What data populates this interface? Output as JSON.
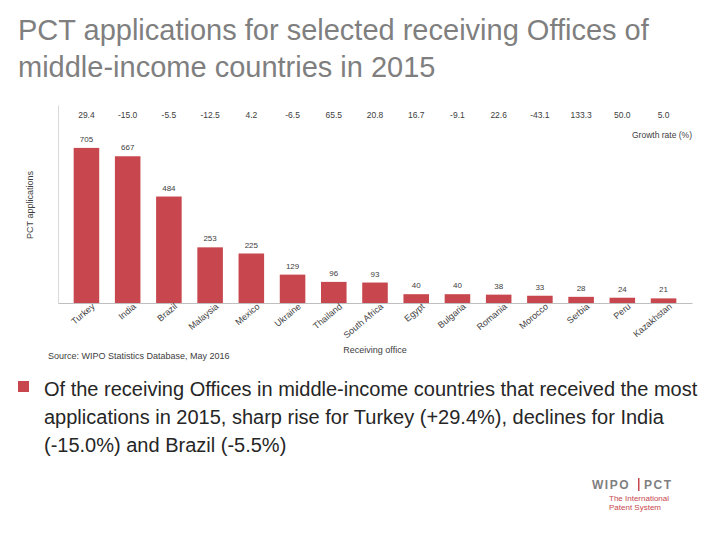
{
  "chart_data": {
    "type": "bar",
    "title": "PCT applications for selected receiving Offices of middle-income countries in 2015",
    "x_label": "Receiving office",
    "y_label": "PCT applications",
    "source": "Source: WIPO Statistics Database, May 2016",
    "categories": [
      "Turkey",
      "India",
      "Brazil",
      "Malaysia",
      "Mexico",
      "Ukraine",
      "Thailand",
      "South Africa",
      "Egypt",
      "Bulgaria",
      "Romania",
      "Morocco",
      "Serbia",
      "Peru",
      "Kazakhstan"
    ],
    "values": [
      705,
      667,
      484,
      253,
      225,
      129,
      96,
      93,
      40,
      40,
      38,
      33,
      28,
      24,
      21
    ],
    "color": "#c8474e",
    "ylim": [
      0,
      900
    ],
    "yticks": [],
    "grid": false,
    "data_labels": true,
    "tick_labels": "x",
    "growth_rate": {
      "label": "Growth rate (%)",
      "values": [
        29.4,
        -15,
        -5.5,
        -12.5,
        4.2,
        -6.5,
        65.5,
        20.8,
        16.7,
        -9.1,
        22.6,
        -43.1,
        133.3,
        50,
        5
      ],
      "value_labels": [
        "29.4",
        "-15.0",
        "-5.5",
        "-12.5",
        "4.2",
        "-6.5",
        "65.5",
        "20.8",
        "16.7",
        "-9.1",
        "22.6",
        "-43.1",
        "133.3",
        "50.0",
        "5.0"
      ]
    }
  },
  "bullets": [
    "Of the receiving Offices in middle-income countries that received the most applications in 2015, sharp rise for Turkey (+29.4%), declines for India (-15.0%) and Brazil (-5.5%)"
  ],
  "logo": {
    "organization": "WIPO",
    "system": "PCT",
    "tagline": [
      "The International",
      "Patent System"
    ]
  }
}
